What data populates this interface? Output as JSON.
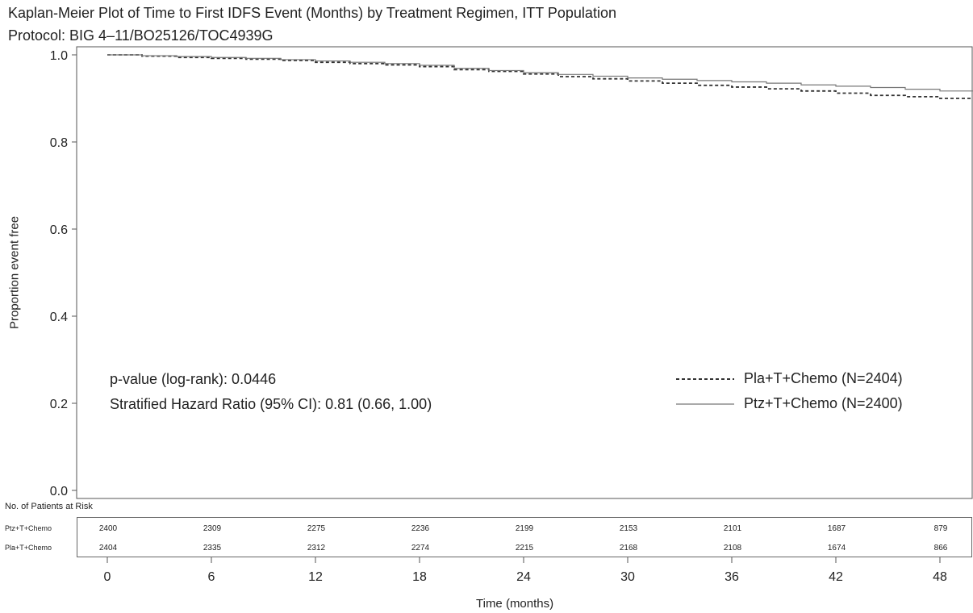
{
  "chart_data": {
    "type": "line",
    "title": "Kaplan-Meier Plot of Time to First IDFS Event (Months) by Treatment Regimen, ITT Population",
    "subtitle": "Protocol: BIG 4–11/BO25126/TOC4939G",
    "xlabel": "Time (months)",
    "ylabel": "Proportion event free",
    "xlim": [
      0,
      50
    ],
    "ylim": [
      0,
      1.0
    ],
    "x_ticks": [
      0,
      6,
      12,
      18,
      24,
      30,
      36,
      42,
      48
    ],
    "x_tick_labels": [
      "0",
      "6",
      "12",
      "18",
      "24",
      "30",
      "36",
      "42",
      "48"
    ],
    "y_ticks": [
      0,
      0.2,
      0.4,
      0.6,
      0.8,
      1.0
    ],
    "y_tick_labels": [
      "0.0",
      "0.2",
      "0.4",
      "0.6",
      "0.8",
      "1.0"
    ],
    "grid": false,
    "series": [
      {
        "name": "Pla+T+Chemo (N=2404)",
        "style": "dashed",
        "x": [
          0,
          2,
          4,
          6,
          8,
          10,
          12,
          14,
          16,
          18,
          20,
          22,
          24,
          26,
          28,
          30,
          32,
          34,
          36,
          38,
          40,
          42,
          44,
          46,
          48,
          50
        ],
        "y": [
          1.0,
          0.997,
          0.994,
          0.992,
          0.99,
          0.987,
          0.983,
          0.98,
          0.977,
          0.973,
          0.966,
          0.962,
          0.956,
          0.95,
          0.945,
          0.94,
          0.935,
          0.93,
          0.926,
          0.922,
          0.917,
          0.912,
          0.907,
          0.904,
          0.9,
          0.898
        ]
      },
      {
        "name": "Ptz+T+Chemo (N=2400)",
        "style": "solid",
        "x": [
          0,
          2,
          4,
          6,
          8,
          10,
          12,
          14,
          16,
          18,
          20,
          22,
          24,
          26,
          28,
          30,
          32,
          34,
          36,
          38,
          40,
          42,
          44,
          46,
          48,
          50
        ],
        "y": [
          1.0,
          0.998,
          0.996,
          0.994,
          0.992,
          0.989,
          0.986,
          0.983,
          0.98,
          0.976,
          0.969,
          0.964,
          0.959,
          0.955,
          0.951,
          0.947,
          0.944,
          0.941,
          0.938,
          0.935,
          0.931,
          0.928,
          0.925,
          0.921,
          0.917,
          0.913
        ]
      }
    ],
    "annotations": [
      "p-value (log-rank): 0.0446",
      "Stratified Hazard Ratio (95% CI): 0.81 (0.66, 1.00)"
    ],
    "legend_position": "bottom-right",
    "risk_table": {
      "title": "No. of Patients at Risk",
      "times": [
        0,
        6,
        12,
        18,
        24,
        30,
        36,
        42,
        48
      ],
      "rows": [
        {
          "label": "Ptz+T+Chemo",
          "values": [
            "2400",
            "2309",
            "2275",
            "2236",
            "2199",
            "2153",
            "2101",
            "1687",
            "879"
          ]
        },
        {
          "label": "Pla+T+Chemo",
          "values": [
            "2404",
            "2335",
            "2312",
            "2274",
            "2215",
            "2168",
            "2108",
            "1674",
            "866"
          ]
        }
      ]
    }
  }
}
